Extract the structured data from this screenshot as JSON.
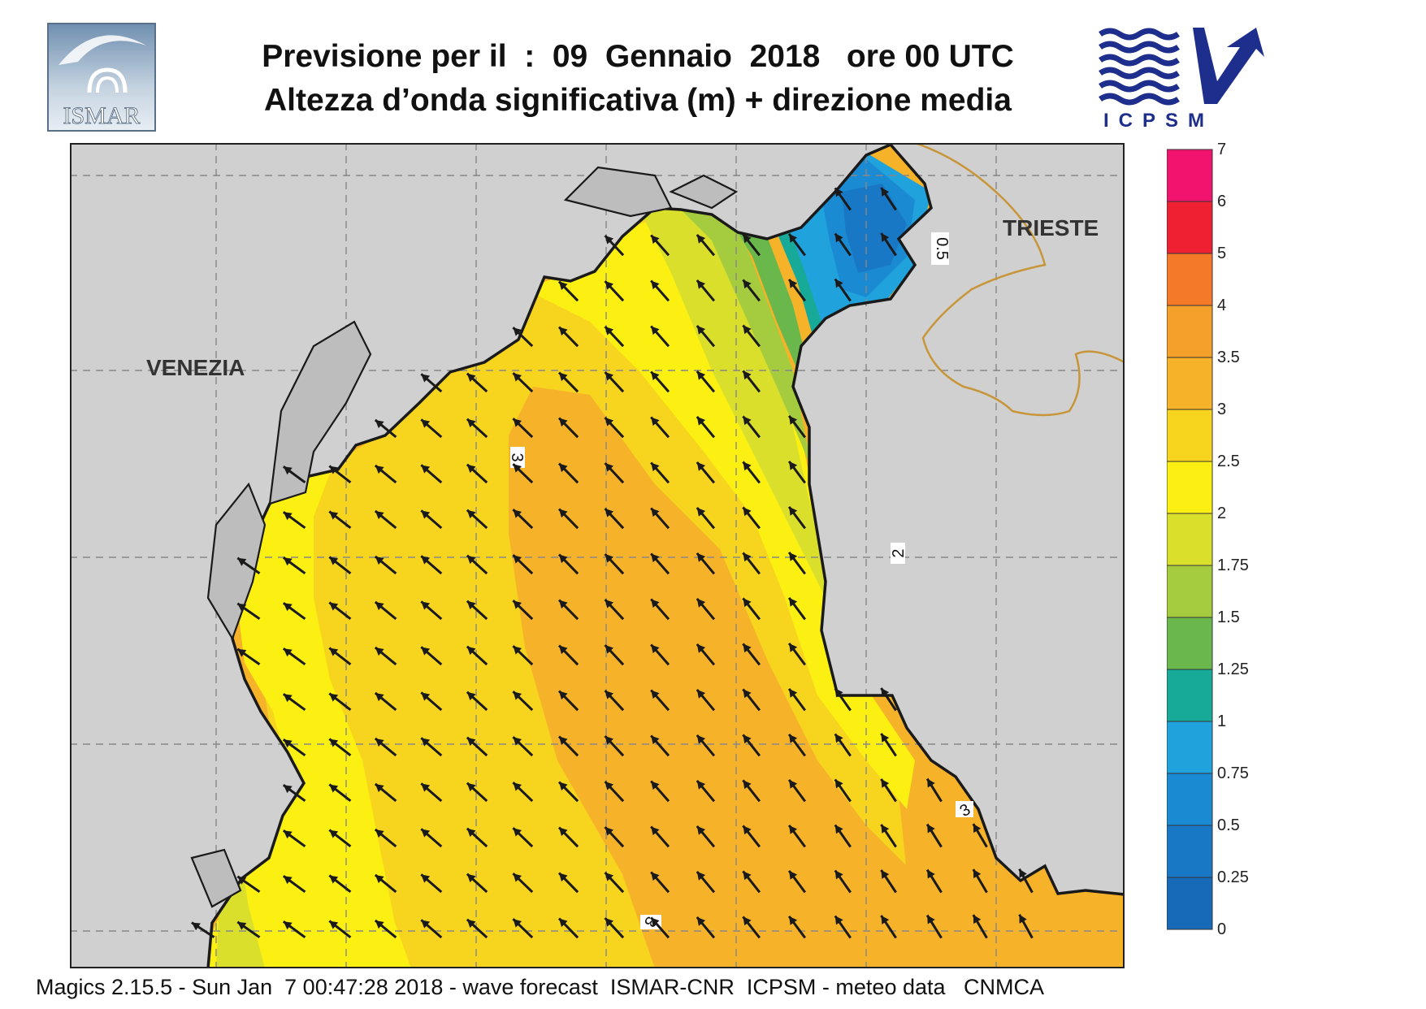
{
  "title": {
    "line1": "Previsione per il  :  09  Gennaio  2018   ore 00 UTC",
    "line2": "Altezza d’onda significativa (m) + direzione media"
  },
  "logos": {
    "left_text": "ISMAR",
    "right_text": "ICPSM",
    "right_color": "#1e2e8c"
  },
  "map": {
    "place_labels": [
      "VENEZIA",
      "TRIESTE"
    ],
    "contour_labels": [
      "3",
      "2",
      "3",
      "3",
      "0.5"
    ],
    "colors": {
      "land": "#d0d0d0",
      "coast": "#1a1a1a",
      "border": "#c8963a",
      "grid": "#888888"
    }
  },
  "legend": {
    "ticks": [
      "7",
      "6",
      "5",
      "4",
      "3.5",
      "3",
      "2.5",
      "2",
      "1.75",
      "1.5",
      "1.25",
      "1",
      "0.75",
      "0.5",
      "0.25",
      "0"
    ],
    "colors": [
      "#f0146e",
      "#ee2032",
      "#f47a2a",
      "#f5a02a",
      "#f6b228",
      "#f7d41e",
      "#fbf012",
      "#d9df2a",
      "#a5cc3e",
      "#6ab84c",
      "#18aa98",
      "#20a2dd",
      "#1a8ad2",
      "#1978c6",
      "#176ab8"
    ]
  },
  "footer": {
    "text": "Magics 2.15.5 - Sun Jan  7 00:47:28 2018 - wave forecast  ISMAR-CNR  ICPSM - meteo data   CNMCA"
  }
}
